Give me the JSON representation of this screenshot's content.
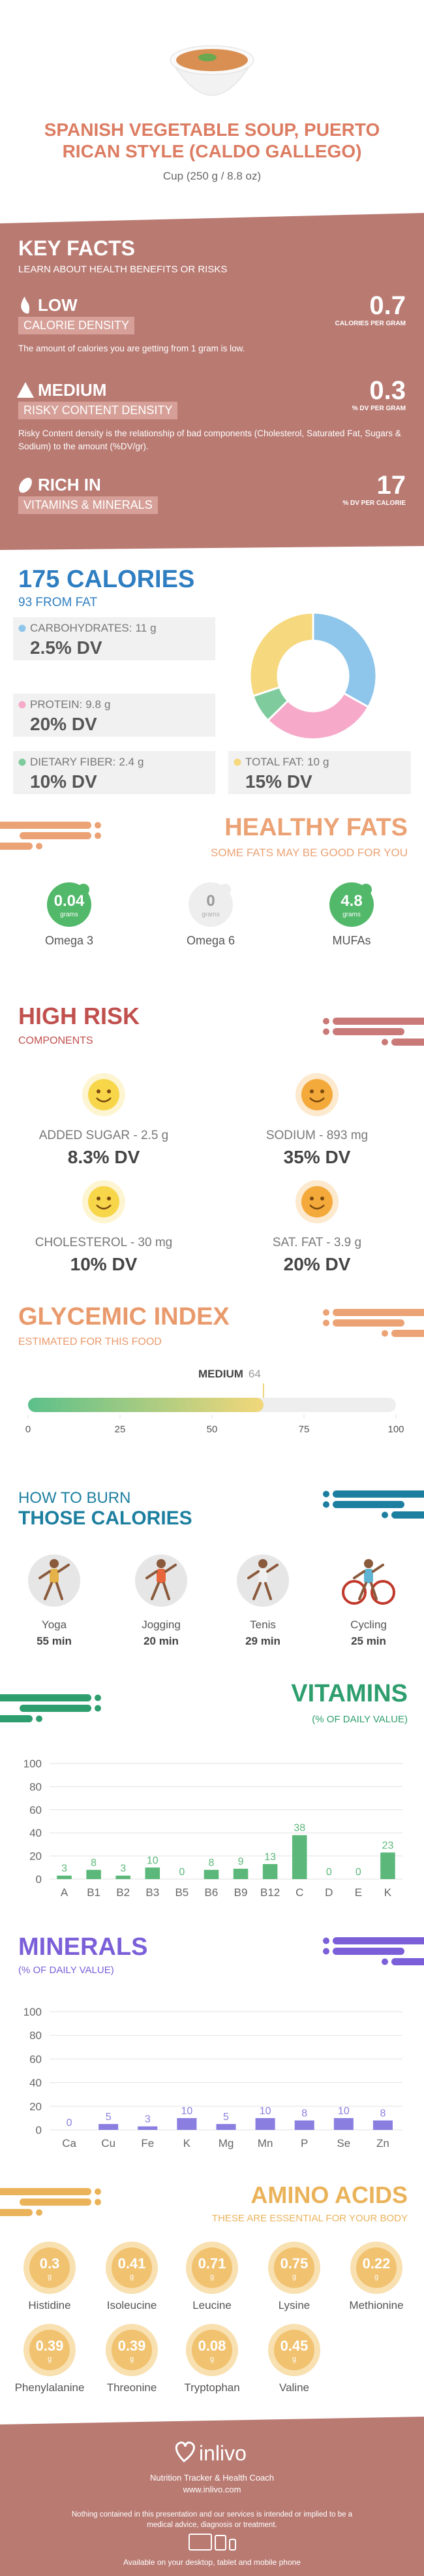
{
  "header": {
    "title": "SPANISH VEGETABLE SOUP, PUERTO RICAN STYLE (CALDO GALLEGO)",
    "serving": "Cup (250 g / 8.8 oz)"
  },
  "key_facts": {
    "title": "KEY FACTS",
    "subtitle": "LEARN ABOUT HEALTH BENEFITS OR RISKS",
    "items": [
      {
        "level": "LOW",
        "label": "CALORIE DENSITY",
        "value": 0.7,
        "unit": "CALORIES PER GRAM",
        "description": "The amount of calories you are getting from 1 gram is low."
      },
      {
        "level": "MEDIUM",
        "label": "RISKY CONTENT DENSITY",
        "value": 0.3,
        "unit": "% DV PER GRAM",
        "description": "Risky Content density is the relationship of bad components (Cholesterol, Saturated Fat, Sugars & Sodium) to the amount (%DV/gr)."
      },
      {
        "level": "RICH IN",
        "label": "VITAMINS & MINERALS",
        "value": 17,
        "unit": "% DV PER CALORIE"
      }
    ]
  },
  "calories": {
    "title": "175 CALORIES",
    "subtitle": "93 FROM FAT",
    "nutrients": [
      {
        "name": "CARBOHYDRATES:",
        "amount": 11,
        "unit": "g",
        "dv": "2.5% DV",
        "color": "#8ec5ea"
      },
      {
        "name": "PROTEIN:",
        "amount": 9.8,
        "unit": "g",
        "dv": "20% DV",
        "color": "#f6a9c9"
      },
      {
        "name": "DIETARY FIBER:",
        "amount": 2.4,
        "unit": "g",
        "dv": "10% DV",
        "color": "#7fcb9e"
      },
      {
        "name": "TOTAL FAT:",
        "amount": 10,
        "unit": "g",
        "dv": "15% DV",
        "color": "#f6d87e"
      }
    ]
  },
  "healthy_fats": {
    "title": "HEALTHY FATS",
    "subtitle": "SOME FATS MAY BE GOOD FOR YOU",
    "items": [
      {
        "value": 0.04,
        "unit": "grams",
        "name": "Omega 3",
        "color": "#52b86a"
      },
      {
        "value": 0,
        "unit": "grams",
        "name": "Omega 6",
        "color": "#eeeeee"
      },
      {
        "value": 4.8,
        "unit": "grams",
        "name": "MUFAs",
        "color": "#52b86a"
      }
    ]
  },
  "high_risk": {
    "title": "HIGH RISK",
    "subtitle": "COMPONENTS",
    "items": [
      {
        "label": "ADDED SUGAR - 2.5 g",
        "dv": "8.3% DV",
        "color": "#f7d64a"
      },
      {
        "label": "SODIUM - 893 mg",
        "dv": "35% DV",
        "color": "#f4a93b"
      },
      {
        "label": "CHOLESTEROL - 30 mg",
        "dv": "10% DV",
        "color": "#f7d64a"
      },
      {
        "label": "SAT. FAT - 3.9 g",
        "dv": "20% DV",
        "color": "#f4a93b"
      }
    ]
  },
  "glycemic_index": {
    "title": "GLYCEMIC INDEX",
    "subtitle": "ESTIMATED FOR THIS FOOD",
    "level": "MEDIUM",
    "value": 64,
    "xlim": [
      0,
      100
    ],
    "xticks": [
      0,
      25,
      50,
      75,
      100
    ]
  },
  "burn": {
    "title": "HOW TO BURN",
    "subtitle": "THOSE CALORIES",
    "activities": [
      {
        "name": "Yoga",
        "time": "55 min"
      },
      {
        "name": "Jogging",
        "time": "20 min"
      },
      {
        "name": "Tenis",
        "time": "29 min"
      },
      {
        "name": "Cycling",
        "time": "25 min"
      }
    ]
  },
  "vitamins": {
    "type": "bar",
    "title": "VITAMINS",
    "subtitle": "(% OF DAILY VALUE)",
    "categories": [
      "A",
      "B1",
      "B2",
      "B3",
      "B5",
      "B6",
      "B9",
      "B12",
      "C",
      "D",
      "E",
      "K"
    ],
    "values": [
      3,
      8,
      3,
      10,
      0,
      8,
      9,
      13,
      38,
      0,
      0,
      23
    ],
    "color": "#5cb87a",
    "ylim": [
      0,
      100
    ],
    "yticks": [
      0,
      20,
      40,
      60,
      80,
      100
    ],
    "grid": true
  },
  "minerals": {
    "type": "bar",
    "title": "MINERALS",
    "subtitle": "(% OF DAILY VALUE)",
    "categories": [
      "Ca",
      "Cu",
      "Fe",
      "K",
      "Mg",
      "Mn",
      "P",
      "Se",
      "Zn"
    ],
    "values": [
      0,
      5,
      3,
      10,
      5,
      10,
      8,
      10,
      8
    ],
    "color": "#8a7fe0",
    "ylim": [
      0,
      100
    ],
    "yticks": [
      0,
      20,
      40,
      60,
      80,
      100
    ],
    "grid": true
  },
  "amino_acids": {
    "title": "AMINO ACIDS",
    "subtitle": "THESE ARE ESSENTIAL FOR YOUR BODY",
    "items": [
      {
        "name": "Histidine",
        "value": 0.3,
        "unit": "g"
      },
      {
        "name": "Isoleucine",
        "value": 0.41,
        "unit": "g"
      },
      {
        "name": "Leucine",
        "value": 0.71,
        "unit": "g"
      },
      {
        "name": "Lysine",
        "value": 0.75,
        "unit": "g"
      },
      {
        "name": "Methionine",
        "value": 0.22,
        "unit": "g"
      },
      {
        "name": "Phenylalanine",
        "value": 0.39,
        "unit": "g"
      },
      {
        "name": "Threonine",
        "value": 0.39,
        "unit": "g"
      },
      {
        "name": "Tryptophan",
        "value": 0.08,
        "unit": "g"
      },
      {
        "name": "Valine",
        "value": 0.45,
        "unit": "g"
      }
    ]
  },
  "footer": {
    "brand": "inlivo",
    "tagline": "Nutrition Tracker & Health Coach",
    "url": "www.inlivo.com",
    "disclaimer": "Nothing contained in this presentation and our services is intended or implied to be a medical advice, diagnosis or treatment.",
    "availability": "Available on your desktop, tablet and mobile phone"
  }
}
